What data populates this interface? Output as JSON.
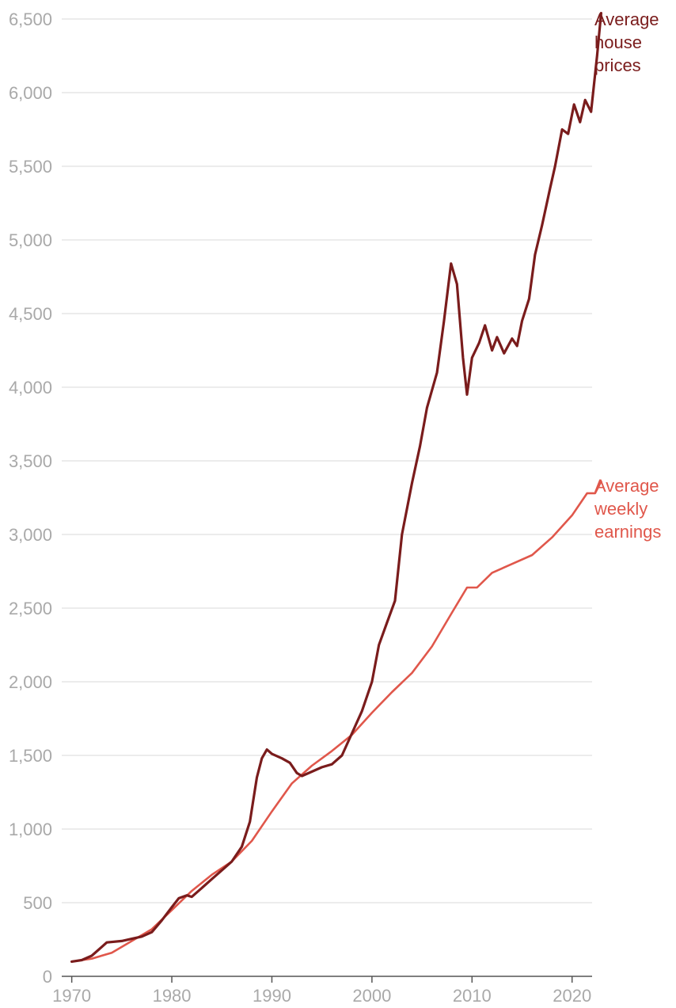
{
  "chart_data": {
    "type": "line",
    "title": "",
    "xlabel": "",
    "ylabel": "",
    "xlim": [
      1969,
      2022
    ],
    "ylim": [
      0,
      6500
    ],
    "x_ticks": [
      1970,
      1980,
      1990,
      2000,
      2010,
      2020
    ],
    "x_tick_labels": [
      "1970",
      "1980",
      "1990",
      "2000",
      "2010",
      "2020"
    ],
    "y_ticks": [
      0,
      500,
      1000,
      1500,
      2000,
      2500,
      3000,
      3500,
      4000,
      4500,
      5000,
      5500,
      6000,
      6500
    ],
    "y_tick_labels": [
      "0",
      "500",
      "1,000",
      "1,500",
      "2,000",
      "2,500",
      "3,000",
      "3,500",
      "4,000",
      "4,500",
      "5,000",
      "5,500",
      "6,000",
      "6,500"
    ],
    "grid": "horizontal",
    "series": [
      {
        "name": "Average house prices",
        "label_lines": [
          "Average",
          "house",
          "prices"
        ],
        "color": "#7a1c1c",
        "points": [
          [
            1970,
            100
          ],
          [
            1971,
            110
          ],
          [
            1972,
            140
          ],
          [
            1973,
            200
          ],
          [
            1973.5,
            230
          ],
          [
            1975,
            240
          ],
          [
            1976,
            255
          ],
          [
            1977,
            270
          ],
          [
            1978,
            300
          ],
          [
            1979,
            380
          ],
          [
            1980,
            470
          ],
          [
            1980.7,
            530
          ],
          [
            1981.5,
            550
          ],
          [
            1982,
            540
          ],
          [
            1983,
            600
          ],
          [
            1984,
            660
          ],
          [
            1985,
            720
          ],
          [
            1986,
            780
          ],
          [
            1987,
            880
          ],
          [
            1987.8,
            1050
          ],
          [
            1988.5,
            1350
          ],
          [
            1989,
            1480
          ],
          [
            1989.5,
            1540
          ],
          [
            1990,
            1510
          ],
          [
            1991,
            1480
          ],
          [
            1991.8,
            1450
          ],
          [
            1992.5,
            1380
          ],
          [
            1993,
            1360
          ],
          [
            1994,
            1390
          ],
          [
            1995,
            1420
          ],
          [
            1996,
            1440
          ],
          [
            1997,
            1500
          ],
          [
            1998,
            1650
          ],
          [
            1999,
            1800
          ],
          [
            2000,
            2000
          ],
          [
            2000.7,
            2250
          ],
          [
            2001.5,
            2400
          ],
          [
            2002.3,
            2550
          ],
          [
            2003,
            3000
          ],
          [
            2004,
            3350
          ],
          [
            2004.8,
            3600
          ],
          [
            2005.5,
            3860
          ],
          [
            2006.5,
            4100
          ],
          [
            2007.2,
            4450
          ],
          [
            2007.9,
            4840
          ],
          [
            2008.5,
            4700
          ],
          [
            2009.1,
            4200
          ],
          [
            2009.5,
            3950
          ],
          [
            2010,
            4200
          ],
          [
            2010.7,
            4300
          ],
          [
            2011.3,
            4420
          ],
          [
            2012,
            4250
          ],
          [
            2012.5,
            4340
          ],
          [
            2013.2,
            4230
          ],
          [
            2014,
            4330
          ],
          [
            2014.5,
            4280
          ],
          [
            2015,
            4450
          ],
          [
            2015.7,
            4600
          ],
          [
            2016.3,
            4900
          ],
          [
            2017,
            5100
          ],
          [
            2017.8,
            5350
          ],
          [
            2018.3,
            5500
          ],
          [
            2019,
            5750
          ],
          [
            2019.6,
            5720
          ],
          [
            2020.2,
            5920
          ],
          [
            2020.8,
            5800
          ],
          [
            2021.3,
            5950
          ],
          [
            2021.9,
            5870
          ],
          [
            2022.5,
            6250
          ],
          [
            2022.9,
            6540
          ]
        ]
      },
      {
        "name": "Average weekly earnings",
        "label_lines": [
          "Average",
          "weekly",
          "earnings"
        ],
        "color": "#e0574b",
        "points": [
          [
            1970,
            100
          ],
          [
            1972,
            120
          ],
          [
            1974,
            160
          ],
          [
            1976,
            240
          ],
          [
            1978,
            320
          ],
          [
            1980,
            450
          ],
          [
            1982,
            580
          ],
          [
            1984,
            690
          ],
          [
            1986,
            780
          ],
          [
            1988,
            920
          ],
          [
            1990,
            1120
          ],
          [
            1992,
            1310
          ],
          [
            1994,
            1430
          ],
          [
            1996,
            1530
          ],
          [
            1998,
            1640
          ],
          [
            2000,
            1790
          ],
          [
            2002,
            1930
          ],
          [
            2004,
            2060
          ],
          [
            2006,
            2240
          ],
          [
            2008,
            2470
          ],
          [
            2009.5,
            2640
          ],
          [
            2010.5,
            2640
          ],
          [
            2012,
            2740
          ],
          [
            2014,
            2800
          ],
          [
            2016,
            2860
          ],
          [
            2018,
            2980
          ],
          [
            2020,
            3130
          ],
          [
            2021.5,
            3280
          ],
          [
            2022.3,
            3280
          ],
          [
            2022.9,
            3360
          ]
        ]
      }
    ]
  }
}
